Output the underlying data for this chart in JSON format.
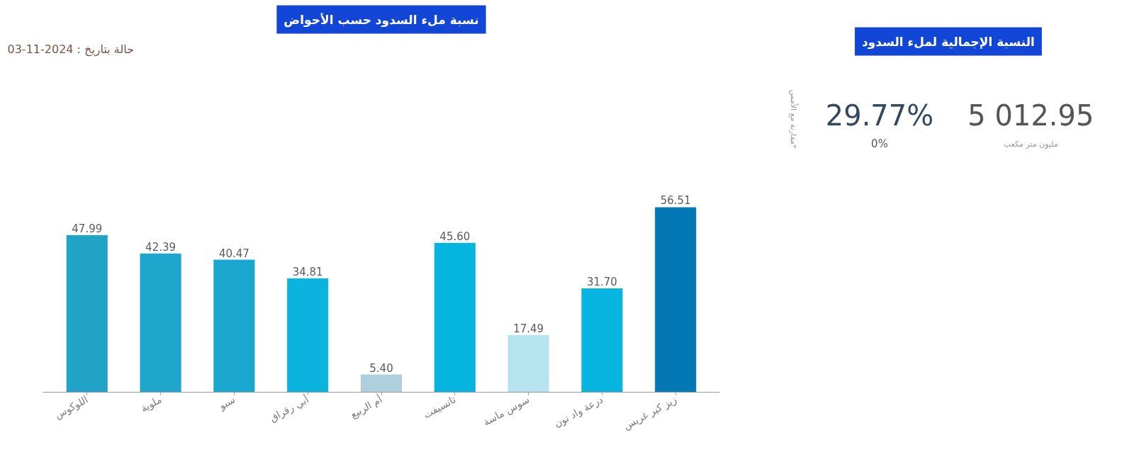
{
  "chart_data": [
    {
      "type": "bar",
      "title": "نسبة ملء السدود حسب الأحواض",
      "categories": [
        "اللوكوس",
        "ملوية",
        "سبو",
        "أبي رقراق",
        "أم الربيع",
        "تانسيفت",
        "سوس ماسة",
        "درعة واد نون",
        "زيز كير غريس"
      ],
      "values": [
        47.99,
        42.39,
        40.47,
        34.81,
        5.4,
        45.6,
        17.49,
        31.7,
        56.51
      ],
      "value_labels": [
        "47.99",
        "42.39",
        "40.47",
        "34.81",
        "5.40",
        "45.60",
        "17.49",
        "31.70",
        "56.51"
      ],
      "colors": [
        "#21a3c8",
        "#1ea6cc",
        "#1aa7cf",
        "#0db3df",
        "#aecfdc",
        "#05b5e0",
        "#b5e3f0",
        "#08b4e0",
        "#0378b4"
      ],
      "annotations": [
        "حالة بتاريخ : 2024-11-03"
      ]
    },
    {
      "type": "other",
      "title": "النسبة الإجمالية لملء السدود",
      "annotations": [
        "29.77%",
        "0%",
        "5 012.95",
        "مليون متر مكعب",
        "مقارنة مع الأمس*"
      ]
    }
  ]
}
